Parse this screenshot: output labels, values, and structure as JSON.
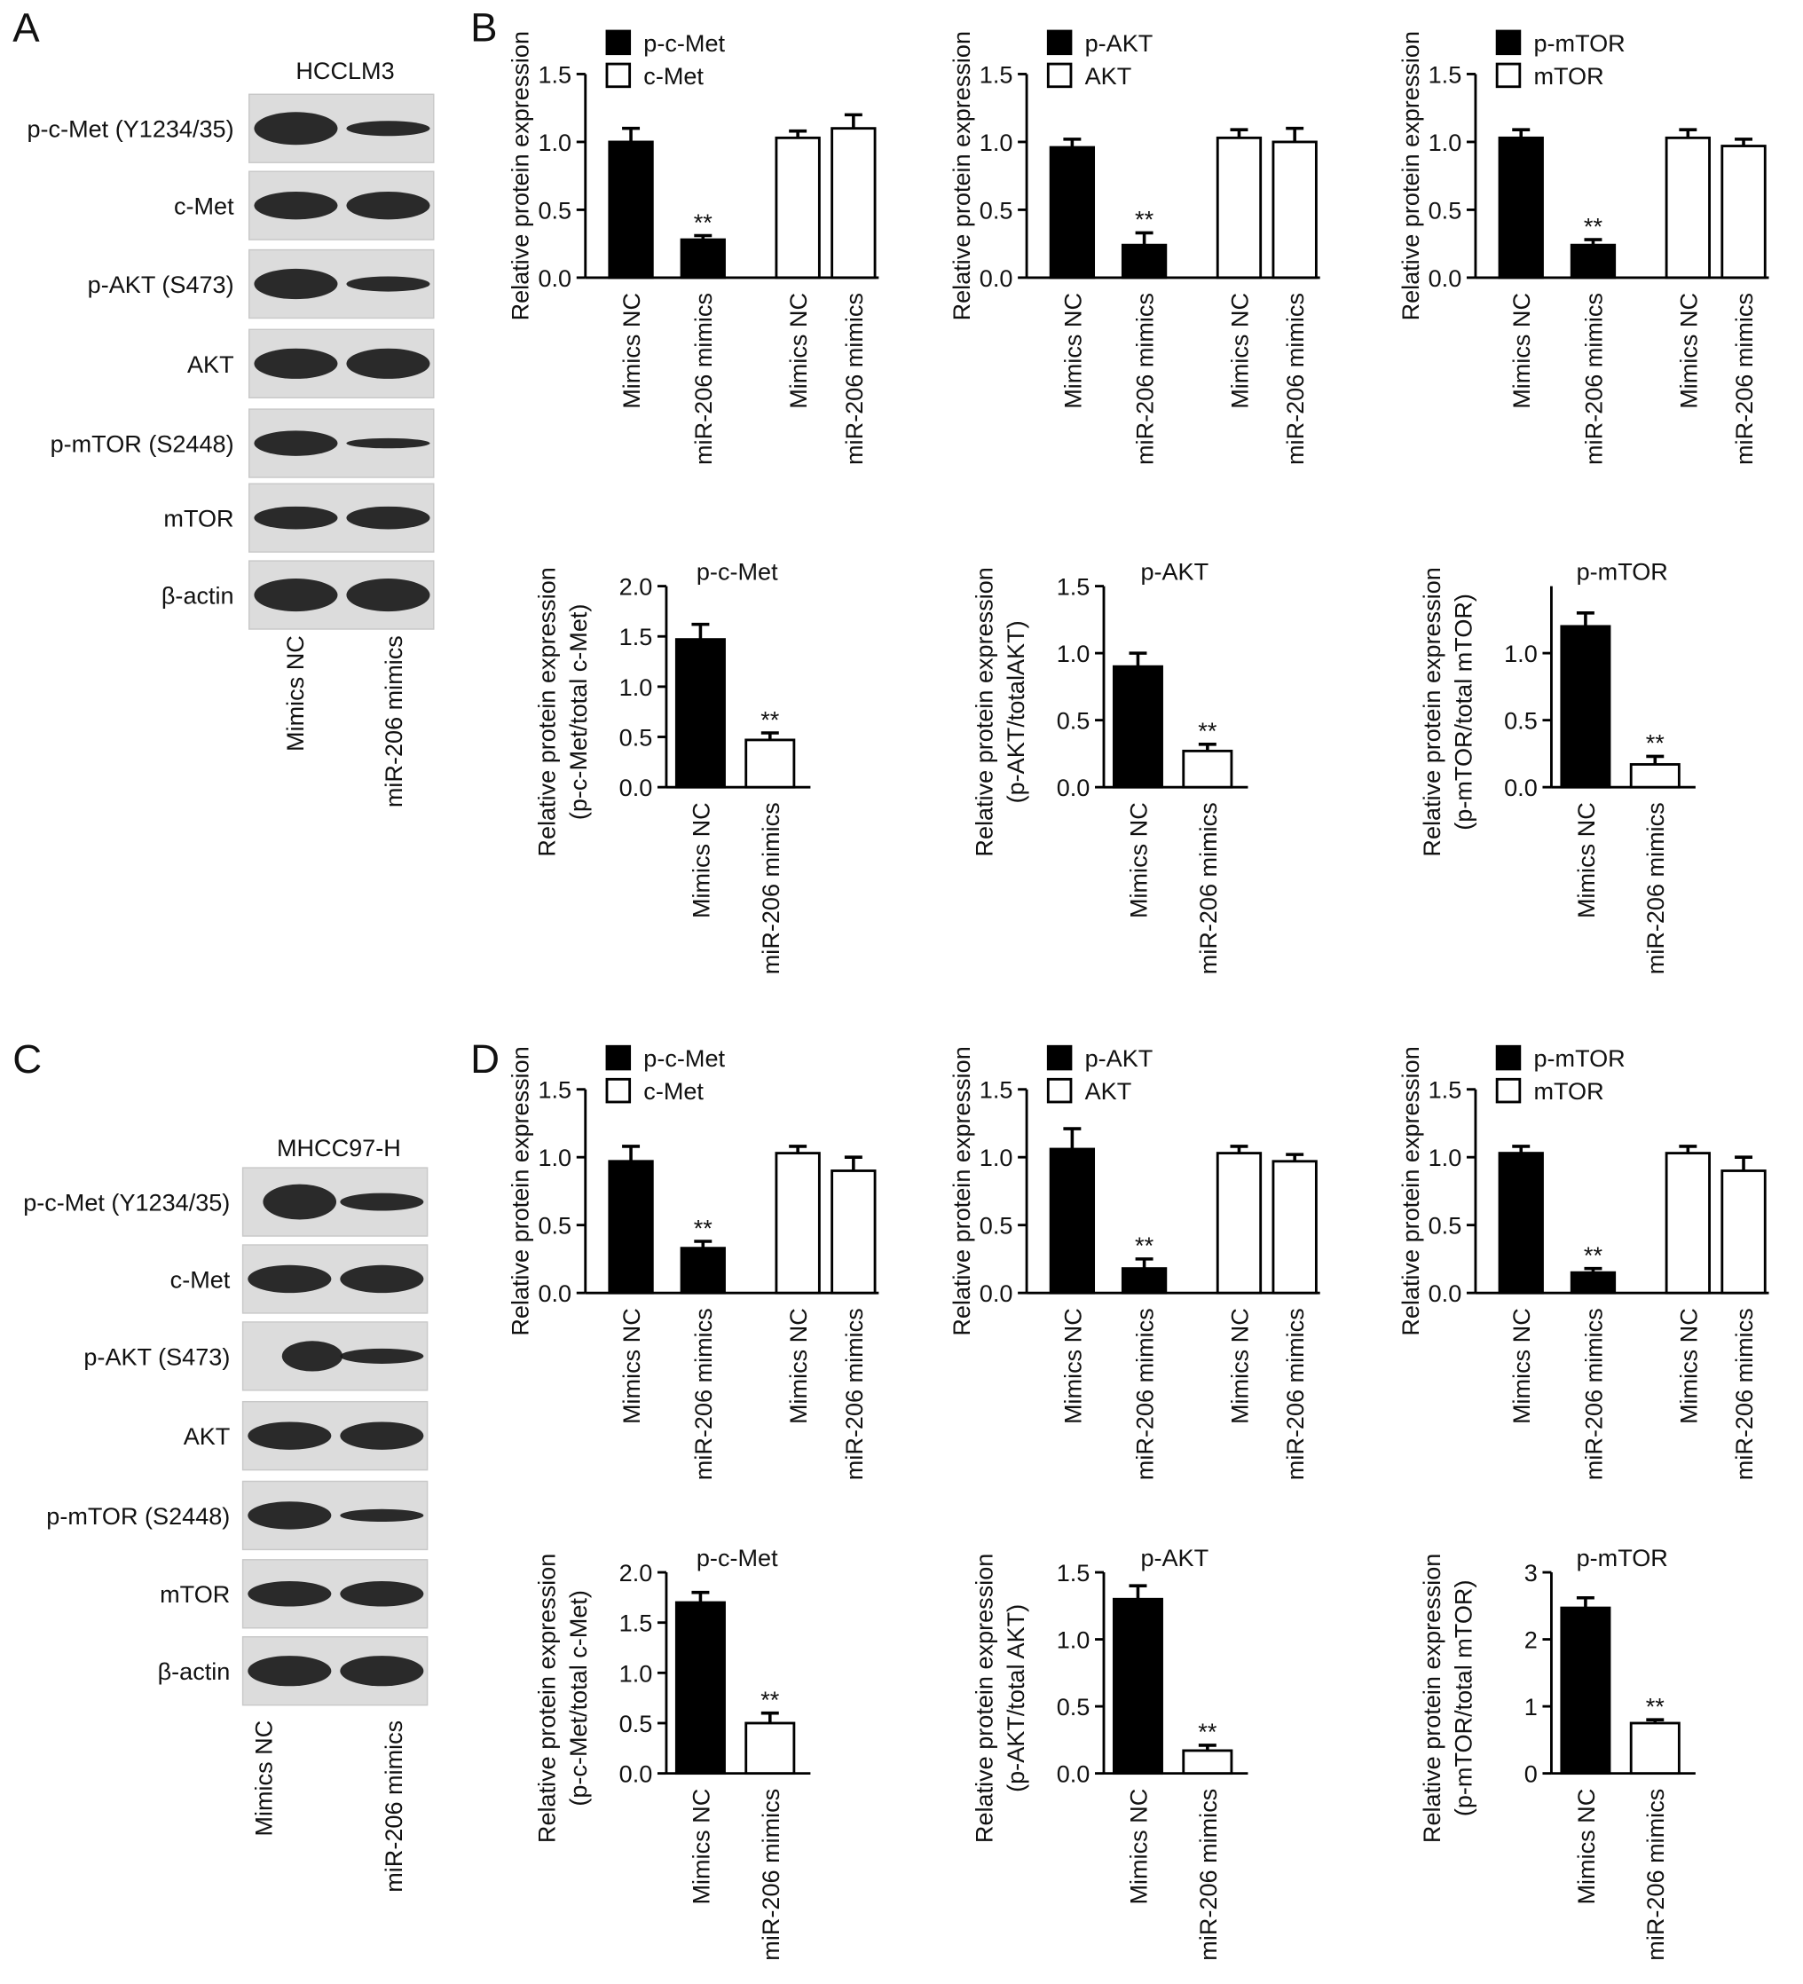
{
  "panel_labels": [
    "A",
    "B",
    "C",
    "D"
  ],
  "blots": [
    {
      "cell_line": "HCCLM3",
      "proteins": [
        "p-c-Met (Y1234/35)",
        "c-Met",
        "p-AKT (S473)",
        "AKT",
        "p-mTOR (S2448)",
        "mTOR",
        "β-actin"
      ],
      "lanes": [
        "Mimics NC",
        "miR-206 mimics"
      ]
    },
    {
      "cell_line": "MHCC97-H",
      "proteins": [
        "p-c-Met (Y1234/35)",
        "c-Met",
        "p-AKT (S473)",
        "AKT",
        "p-mTOR (S2448)",
        "mTOR",
        "β-actin"
      ],
      "lanes": [
        "Mimics NC",
        "miR-206 mimics"
      ]
    }
  ],
  "chart_data": [
    {
      "type": "bar",
      "ylabel": "Relative protein expression",
      "categories": [
        "Mimics NC",
        "miR-206 mimics",
        "Mimics NC",
        "miR-206 mimics"
      ],
      "series": [
        {
          "name": "p-c-Met",
          "color": "#000000",
          "values": [
            1.0,
            0.28,
            null,
            null
          ],
          "errors": [
            0.1,
            0.03,
            null,
            null
          ],
          "significance": [
            null,
            "**",
            null,
            null
          ]
        },
        {
          "name": "c-Met",
          "color": "#ffffff",
          "values": [
            null,
            null,
            1.03,
            1.1
          ],
          "errors": [
            null,
            null,
            0.05,
            0.1
          ],
          "significance": [
            null,
            null,
            null,
            null
          ]
        }
      ],
      "ylim": [
        0,
        1.5
      ],
      "yticks": [
        {
          "value": 0,
          "label": "0.0"
        },
        0.5,
        {
          "value": 1,
          "label": "1.0"
        },
        1.5
      ]
    },
    {
      "type": "bar",
      "ylabel": "Relative protein expression",
      "categories": [
        "Mimics NC",
        "miR-206 mimics",
        "Mimics NC",
        "miR-206 mimics"
      ],
      "series": [
        {
          "name": "p-AKT",
          "color": "#000000",
          "values": [
            0.96,
            0.24,
            null,
            null
          ],
          "errors": [
            0.06,
            0.09,
            null,
            null
          ],
          "significance": [
            null,
            "**",
            null,
            null
          ]
        },
        {
          "name": "AKT",
          "color": "#ffffff",
          "values": [
            null,
            null,
            1.03,
            1.0
          ],
          "errors": [
            null,
            null,
            0.06,
            0.1
          ],
          "significance": [
            null,
            null,
            null,
            null
          ]
        }
      ],
      "ylim": [
        0,
        1.5
      ],
      "yticks": [
        {
          "value": 0,
          "label": "0.0"
        },
        0.5,
        {
          "value": 1,
          "label": "1.0"
        },
        1.5
      ]
    },
    {
      "type": "bar",
      "ylabel": "Relative protein expression",
      "categories": [
        "Mimics NC",
        "miR-206 mimics",
        "Mimics NC",
        "miR-206 mimics"
      ],
      "series": [
        {
          "name": "p-mTOR",
          "color": "#000000",
          "values": [
            1.03,
            0.24,
            null,
            null
          ],
          "errors": [
            0.06,
            0.04,
            null,
            null
          ],
          "significance": [
            null,
            "**",
            null,
            null
          ]
        },
        {
          "name": "mTOR",
          "color": "#ffffff",
          "values": [
            null,
            null,
            1.03,
            0.97
          ],
          "errors": [
            null,
            null,
            0.06,
            0.05
          ],
          "significance": [
            null,
            null,
            null,
            null
          ]
        }
      ],
      "ylim": [
        0,
        1.5
      ],
      "yticks": [
        {
          "value": 0,
          "label": "0.0"
        },
        0.5,
        {
          "value": 1,
          "label": "1.0"
        },
        1.5
      ]
    },
    {
      "type": "bar",
      "title": "p-c-Met",
      "ylabel": [
        "Relative protein expression",
        "(p-c-Met/total c-Met)"
      ],
      "categories": [
        "Mimics NC",
        "miR-206 mimics"
      ],
      "values": [
        1.47,
        0.47
      ],
      "errors": [
        0.15,
        0.07
      ],
      "colors": [
        "#000000",
        "#ffffff"
      ],
      "significance": [
        null,
        "**"
      ],
      "ylim": [
        0,
        2
      ],
      "yticks": [
        {
          "value": 0,
          "label": "0.0"
        },
        0.5,
        {
          "value": 1,
          "label": "1.0"
        },
        1.5,
        {
          "value": 2,
          "label": "2.0"
        }
      ]
    },
    {
      "type": "bar",
      "title": "p-AKT",
      "ylabel": [
        "Relative protein expression",
        "(p-AKT/totalAKT)"
      ],
      "categories": [
        "Mimics NC",
        "miR-206 mimics"
      ],
      "values": [
        0.9,
        0.27
      ],
      "errors": [
        0.1,
        0.05
      ],
      "colors": [
        "#000000",
        "#ffffff"
      ],
      "significance": [
        null,
        "**"
      ],
      "ylim": [
        0,
        1.5
      ],
      "yticks": [
        {
          "value": 0,
          "label": "0.0"
        },
        0.5,
        {
          "value": 1,
          "label": "1.0"
        },
        1.5
      ]
    },
    {
      "type": "bar",
      "title": "p-mTOR",
      "ylabel": [
        "Relative protein expression",
        "(p-mTOR/total mTOR)"
      ],
      "categories": [
        "Mimics NC",
        "miR-206 mimics"
      ],
      "values": [
        1.2,
        0.17
      ],
      "errors": [
        0.1,
        0.06
      ],
      "colors": [
        "#000000",
        "#ffffff"
      ],
      "significance": [
        null,
        "**"
      ],
      "ylim": [
        0,
        1.5
      ],
      "yticks": [
        {
          "value": 0,
          "label": "0.0"
        },
        0.5,
        {
          "value": 1,
          "label": "1.0"
        }
      ]
    },
    {
      "type": "bar",
      "ylabel": "Relative protein expression",
      "categories": [
        "Mimics NC",
        "miR-206 mimics",
        "Mimics NC",
        "miR-206 mimics"
      ],
      "series": [
        {
          "name": "p-c-Met",
          "color": "#000000",
          "values": [
            0.97,
            0.33,
            null,
            null
          ],
          "errors": [
            0.11,
            0.05,
            null,
            null
          ],
          "significance": [
            null,
            "**",
            null,
            null
          ]
        },
        {
          "name": "c-Met",
          "color": "#ffffff",
          "values": [
            null,
            null,
            1.03,
            0.9
          ],
          "errors": [
            null,
            null,
            0.05,
            0.1
          ],
          "significance": [
            null,
            null,
            null,
            null
          ]
        }
      ],
      "ylim": [
        0,
        1.5
      ],
      "yticks": [
        {
          "value": 0,
          "label": "0.0"
        },
        0.5,
        {
          "value": 1,
          "label": "1.0"
        },
        1.5
      ]
    },
    {
      "type": "bar",
      "ylabel": "Relative protein expression",
      "categories": [
        "Mimics NC",
        "miR-206 mimics",
        "Mimics NC",
        "miR-206 mimics"
      ],
      "series": [
        {
          "name": "p-AKT",
          "color": "#000000",
          "values": [
            1.06,
            0.18,
            null,
            null
          ],
          "errors": [
            0.15,
            0.07,
            null,
            null
          ],
          "significance": [
            null,
            "**",
            null,
            null
          ]
        },
        {
          "name": "AKT",
          "color": "#ffffff",
          "values": [
            null,
            null,
            1.03,
            0.97
          ],
          "errors": [
            null,
            null,
            0.05,
            0.05
          ],
          "significance": [
            null,
            null,
            null,
            null
          ]
        }
      ],
      "ylim": [
        0,
        1.5
      ],
      "yticks": [
        {
          "value": 0,
          "label": "0.0"
        },
        0.5,
        {
          "value": 1,
          "label": "1.0"
        },
        1.5
      ]
    },
    {
      "type": "bar",
      "ylabel": "Relative protein expression",
      "categories": [
        "Mimics NC",
        "miR-206 mimics",
        "Mimics NC",
        "miR-206 mimics"
      ],
      "series": [
        {
          "name": "p-mTOR",
          "color": "#000000",
          "values": [
            1.03,
            0.15,
            null,
            null
          ],
          "errors": [
            0.05,
            0.03,
            null,
            null
          ],
          "significance": [
            null,
            "**",
            null,
            null
          ]
        },
        {
          "name": "mTOR",
          "color": "#ffffff",
          "values": [
            null,
            null,
            1.03,
            0.9
          ],
          "errors": [
            null,
            null,
            0.05,
            0.1
          ],
          "significance": [
            null,
            null,
            null,
            null
          ]
        }
      ],
      "ylim": [
        0,
        1.5
      ],
      "yticks": [
        {
          "value": 0,
          "label": "0.0"
        },
        0.5,
        {
          "value": 1,
          "label": "1.0"
        },
        1.5
      ]
    },
    {
      "type": "bar",
      "title": "p-c-Met",
      "ylabel": [
        "Relative protein expression",
        "(p-c-Met/total c-Met)"
      ],
      "categories": [
        "Mimics NC",
        "miR-206 mimics"
      ],
      "values": [
        1.7,
        0.5
      ],
      "errors": [
        0.1,
        0.1
      ],
      "colors": [
        "#000000",
        "#ffffff"
      ],
      "significance": [
        null,
        "**"
      ],
      "ylim": [
        0,
        2
      ],
      "yticks": [
        {
          "value": 0,
          "label": "0.0"
        },
        0.5,
        {
          "value": 1,
          "label": "1.0"
        },
        1.5,
        {
          "value": 2,
          "label": "2.0"
        }
      ]
    },
    {
      "type": "bar",
      "title": "p-AKT",
      "ylabel": [
        "Relative protein expression",
        "(p-AKT/total AKT)"
      ],
      "categories": [
        "Mimics NC",
        "miR-206 mimics"
      ],
      "values": [
        1.3,
        0.17
      ],
      "errors": [
        0.1,
        0.04
      ],
      "colors": [
        "#000000",
        "#ffffff"
      ],
      "significance": [
        null,
        "**"
      ],
      "ylim": [
        0,
        1.5
      ],
      "yticks": [
        {
          "value": 0,
          "label": "0.0"
        },
        0.5,
        {
          "value": 1,
          "label": "1.0"
        },
        1.5
      ]
    },
    {
      "type": "bar",
      "title": "p-mTOR",
      "ylabel": [
        "Relative protein expression",
        "(p-mTOR/total mTOR)"
      ],
      "categories": [
        "Mimics NC",
        "miR-206 mimics"
      ],
      "values": [
        2.47,
        0.75
      ],
      "errors": [
        0.15,
        0.05
      ],
      "colors": [
        "#000000",
        "#ffffff"
      ],
      "significance": [
        null,
        "**"
      ],
      "ylim": [
        0,
        3
      ],
      "yticks": [
        0,
        1,
        2,
        3
      ]
    }
  ]
}
